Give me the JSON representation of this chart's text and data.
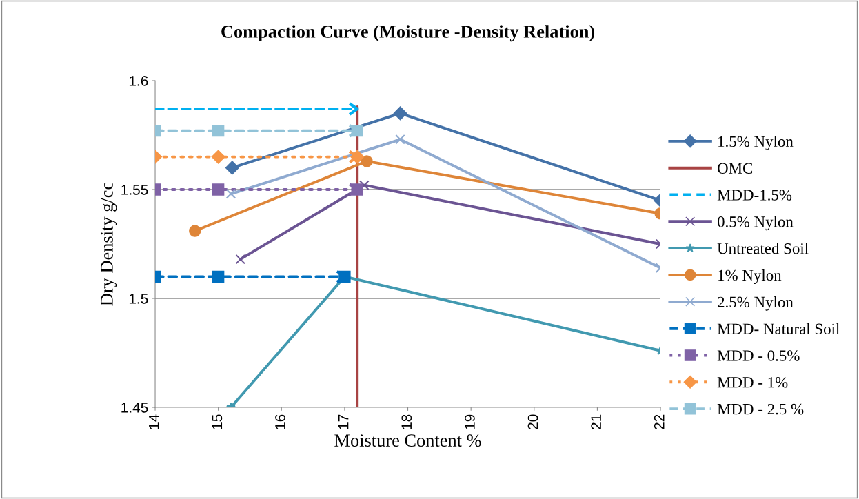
{
  "chart_data": {
    "type": "line",
    "title": "Compaction Curve (Moisture -Density Relation)",
    "xlabel": "Moisture Content %",
    "ylabel": "Dry Density g/cc",
    "xlim": [
      14,
      22
    ],
    "xticks": [
      14,
      15,
      16,
      17,
      18,
      19,
      20,
      21,
      22
    ],
    "ylim": [
      1.45,
      1.6
    ],
    "yticks": [
      1.45,
      1.5,
      1.55,
      1.6
    ],
    "grid": "y",
    "legend": "right",
    "series": [
      {
        "name": "1.5% Nylon",
        "color": "#4472a8",
        "marker": "diamond",
        "x": [
          15.22,
          17.88,
          22
        ],
        "values": [
          1.56,
          1.585,
          1.545
        ]
      },
      {
        "name": "OMC",
        "color": "#a84343",
        "marker": "none",
        "x": [
          17.2,
          17.2
        ],
        "values": [
          1.45,
          1.588
        ]
      },
      {
        "name": "MDD-1.5%",
        "color": "#00b0f0",
        "marker": "none",
        "line_style": "dashed",
        "x": [
          14,
          17.2
        ],
        "values": [
          1.587,
          1.587
        ]
      },
      {
        "name": "0.5% Nylon",
        "color": "#6b5493",
        "marker": "cross",
        "x": [
          15.35,
          17.31,
          22
        ],
        "values": [
          1.518,
          1.552,
          1.525
        ]
      },
      {
        "name": "Untreated Soil",
        "color": "#4199b0",
        "marker": "star",
        "x": [
          15.2,
          17,
          22
        ],
        "values": [
          1.45,
          1.51,
          1.476
        ]
      },
      {
        "name": "1% Nylon",
        "color": "#de8538",
        "marker": "circle",
        "x": [
          14.63,
          17.35,
          22
        ],
        "values": [
          1.531,
          1.563,
          1.539
        ]
      },
      {
        "name": "2.5% Nylon",
        "color": "#8faad0",
        "marker": "cross",
        "x": [
          15.2,
          17.88,
          22
        ],
        "values": [
          1.548,
          1.573,
          1.514
        ]
      },
      {
        "name": "MDD- Natural Soil",
        "color": "#0070c0",
        "marker": "square",
        "line_style": "dashed",
        "x": [
          14,
          15,
          17
        ],
        "values": [
          1.51,
          1.51,
          1.51
        ]
      },
      {
        "name": "MDD - 0.5%",
        "color": "#7f62a6",
        "marker": "square",
        "line_style": "dotted",
        "x": [
          14,
          15,
          17.2
        ],
        "values": [
          1.55,
          1.55,
          1.55
        ]
      },
      {
        "name": "MDD - 1%",
        "color": "#f79646",
        "marker": "diamond",
        "line_style": "dotted",
        "x": [
          14,
          15,
          17.2
        ],
        "values": [
          1.565,
          1.565,
          1.565
        ]
      },
      {
        "name": "MDD - 2.5 %",
        "color": "#92c3d8",
        "marker": "square",
        "line_style": "dashed",
        "x": [
          14,
          15,
          17.2
        ],
        "values": [
          1.577,
          1.577,
          1.577
        ]
      }
    ]
  }
}
